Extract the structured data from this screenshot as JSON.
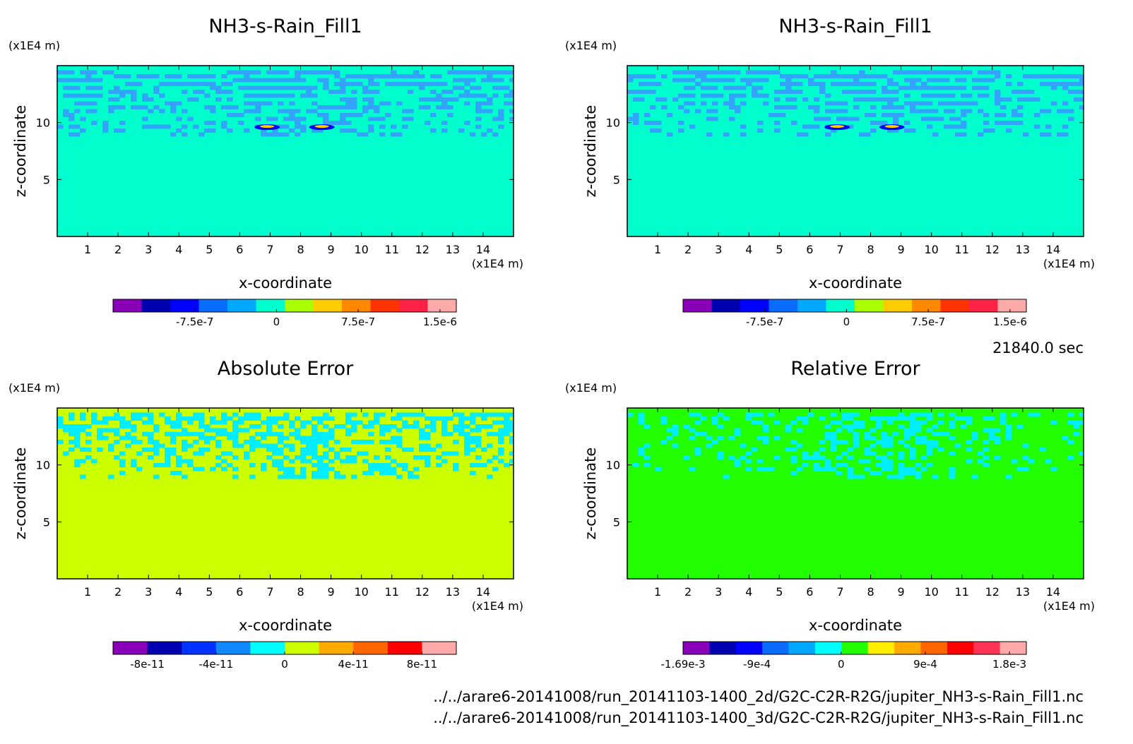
{
  "time_label": "21840.0 sec",
  "file_paths": [
    "../../arare6-20141008/run_20141103-1400_2d/G2C-C2R-R2G/jupiter_NH3-s-Rain_Fill1.nc",
    "../../arare6-20141008/run_20141103-1400_3d/G2C-C2R-R2G/jupiter_NH3-s-Rain_Fill1.nc"
  ],
  "chart_data": [
    {
      "type": "heatmap",
      "title": "NH3-s-Rain_Fill1",
      "xlabel": "x-coordinate",
      "ylabel": "z-coordinate",
      "x_unit": "(x1E4 m)",
      "y_unit": "(x1E4 m)",
      "xlim": [
        0,
        15
      ],
      "ylim": [
        0,
        15
      ],
      "xticks": [
        "1",
        "2",
        "3",
        "4",
        "5",
        "6",
        "7",
        "8",
        "9",
        "10",
        "11",
        "12",
        "13",
        "14"
      ],
      "yticks": [
        "5",
        "10"
      ],
      "background_color": "#00ffcc",
      "blob_color": "#33a3ff",
      "colorbar": {
        "colors": [
          "#8a00b8",
          "#0000b0",
          "#0000ff",
          "#0a6cff",
          "#00a8ff",
          "#00ffcc",
          "#aaff00",
          "#ffcc00",
          "#ff8800",
          "#ff3300",
          "#ff2244",
          "#ffaaaa"
        ],
        "tick_labels": [
          "-7.5e-7",
          "0",
          "7.5e-7",
          "1.5e-6"
        ],
        "tick_values": [
          -7.5e-07,
          0,
          7.5e-07,
          1.5e-06
        ],
        "range": [
          -1.5e-06,
          1.65e-06
        ]
      }
    },
    {
      "type": "heatmap",
      "title": "NH3-s-Rain_Fill1",
      "xlabel": "x-coordinate",
      "ylabel": "z-coordinate",
      "x_unit": "(x1E4 m)",
      "y_unit": "(x1E4 m)",
      "xlim": [
        0,
        15
      ],
      "ylim": [
        0,
        15
      ],
      "xticks": [
        "1",
        "2",
        "3",
        "4",
        "5",
        "6",
        "7",
        "8",
        "9",
        "10",
        "11",
        "12",
        "13",
        "14"
      ],
      "yticks": [
        "5",
        "10"
      ],
      "background_color": "#00ffcc",
      "blob_color": "#33a3ff",
      "colorbar": {
        "colors": [
          "#8a00b8",
          "#0000b0",
          "#0000ff",
          "#0a6cff",
          "#00a8ff",
          "#00ffcc",
          "#aaff00",
          "#ffcc00",
          "#ff8800",
          "#ff3300",
          "#ff2244",
          "#ffaaaa"
        ],
        "tick_labels": [
          "-7.5e-7",
          "0",
          "7.5e-7",
          "1.5e-6"
        ],
        "tick_values": [
          -7.5e-07,
          0,
          7.5e-07,
          1.5e-06
        ],
        "range": [
          -1.5e-06,
          1.65e-06
        ]
      }
    },
    {
      "type": "heatmap",
      "title": "Absolute Error",
      "xlabel": "x-coordinate",
      "ylabel": "z-coordinate",
      "x_unit": "(x1E4 m)",
      "y_unit": "(x1E4 m)",
      "xlim": [
        0,
        15
      ],
      "ylim": [
        0,
        15
      ],
      "xticks": [
        "1",
        "2",
        "3",
        "4",
        "5",
        "6",
        "7",
        "8",
        "9",
        "10",
        "11",
        "12",
        "13",
        "14"
      ],
      "yticks": [
        "5",
        "10"
      ],
      "background_color": "#ccff00",
      "blob_color": "#00eeff",
      "colorbar": {
        "colors": [
          "#8a00b8",
          "#0000b0",
          "#0033ff",
          "#1188ff",
          "#00ffff",
          "#ccff00",
          "#ffaa00",
          "#ff6600",
          "#ff0000",
          "#ffaaaa"
        ],
        "tick_labels": [
          "-8e-11",
          "-4e-11",
          "0",
          "4e-11",
          "8e-11"
        ],
        "tick_values": [
          -8e-11,
          -4e-11,
          0,
          4e-11,
          8e-11
        ],
        "range": [
          -1e-10,
          1e-10
        ]
      }
    },
    {
      "type": "heatmap",
      "title": "Relative Error",
      "xlabel": "x-coordinate",
      "ylabel": "z-coordinate",
      "x_unit": "(x1E4 m)",
      "y_unit": "(x1E4 m)",
      "xlim": [
        0,
        15
      ],
      "ylim": [
        0,
        15
      ],
      "xticks": [
        "1",
        "2",
        "3",
        "4",
        "5",
        "6",
        "7",
        "8",
        "9",
        "10",
        "11",
        "12",
        "13",
        "14"
      ],
      "yticks": [
        "5",
        "10"
      ],
      "background_color": "#22ff00",
      "blob_color": "#00eeff",
      "colorbar": {
        "colors": [
          "#8a00b8",
          "#0000b0",
          "#0000ff",
          "#0a6cff",
          "#00a8ff",
          "#00ffff",
          "#22ff00",
          "#ffee00",
          "#ffaa00",
          "#ff6600",
          "#ff0000",
          "#ff3355",
          "#ffaaaa"
        ],
        "tick_labels": [
          "-1.69e-3",
          "-9e-4",
          "0",
          "9e-4",
          "1.8e-3"
        ],
        "tick_values": [
          -0.00169,
          -0.0009,
          0,
          0.0009,
          0.0018
        ],
        "range": [
          -0.00169,
          0.00198
        ]
      }
    }
  ]
}
